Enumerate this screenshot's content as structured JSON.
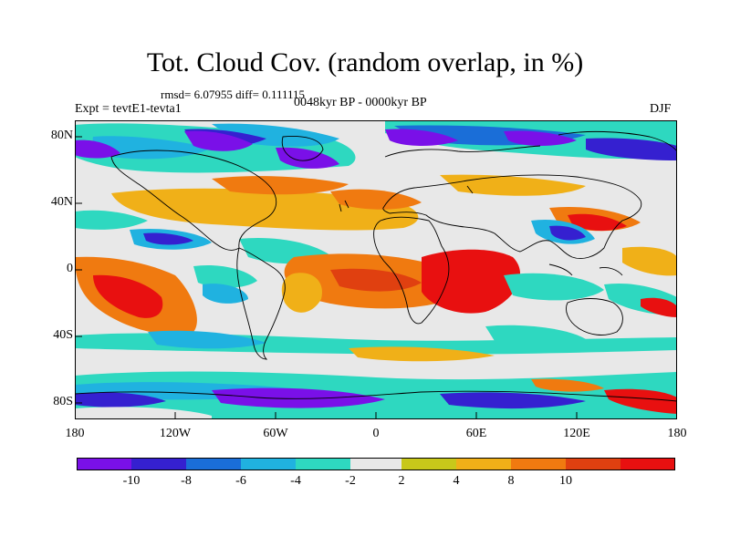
{
  "title": "Tot. Cloud Cov. (random overlap, in %)",
  "stats": "rmsd= 6.07955 diff= 0.111115",
  "experiment": "Expt = tevtE1-tevta1",
  "period": "0048kyr BP - 0000kyr BP",
  "season": "DJF",
  "map": {
    "lat_labels": [
      "80N",
      "40N",
      "0",
      "40S",
      "80S"
    ],
    "lon_labels": [
      "180",
      "120W",
      "60W",
      "0",
      "60E",
      "120E",
      "180"
    ]
  },
  "colorbar": {
    "colors": [
      "#7a10e8",
      "#3520d0",
      "#1a6ed8",
      "#20b2e0",
      "#2ed8c0",
      "#e8e8e8",
      "#c8c81a",
      "#f0b018",
      "#f07a10",
      "#e04010",
      "#e81010"
    ],
    "labels": [
      "-10",
      "-8",
      "-6",
      "-4",
      "-2",
      "2",
      "4",
      "8",
      "10"
    ]
  }
}
